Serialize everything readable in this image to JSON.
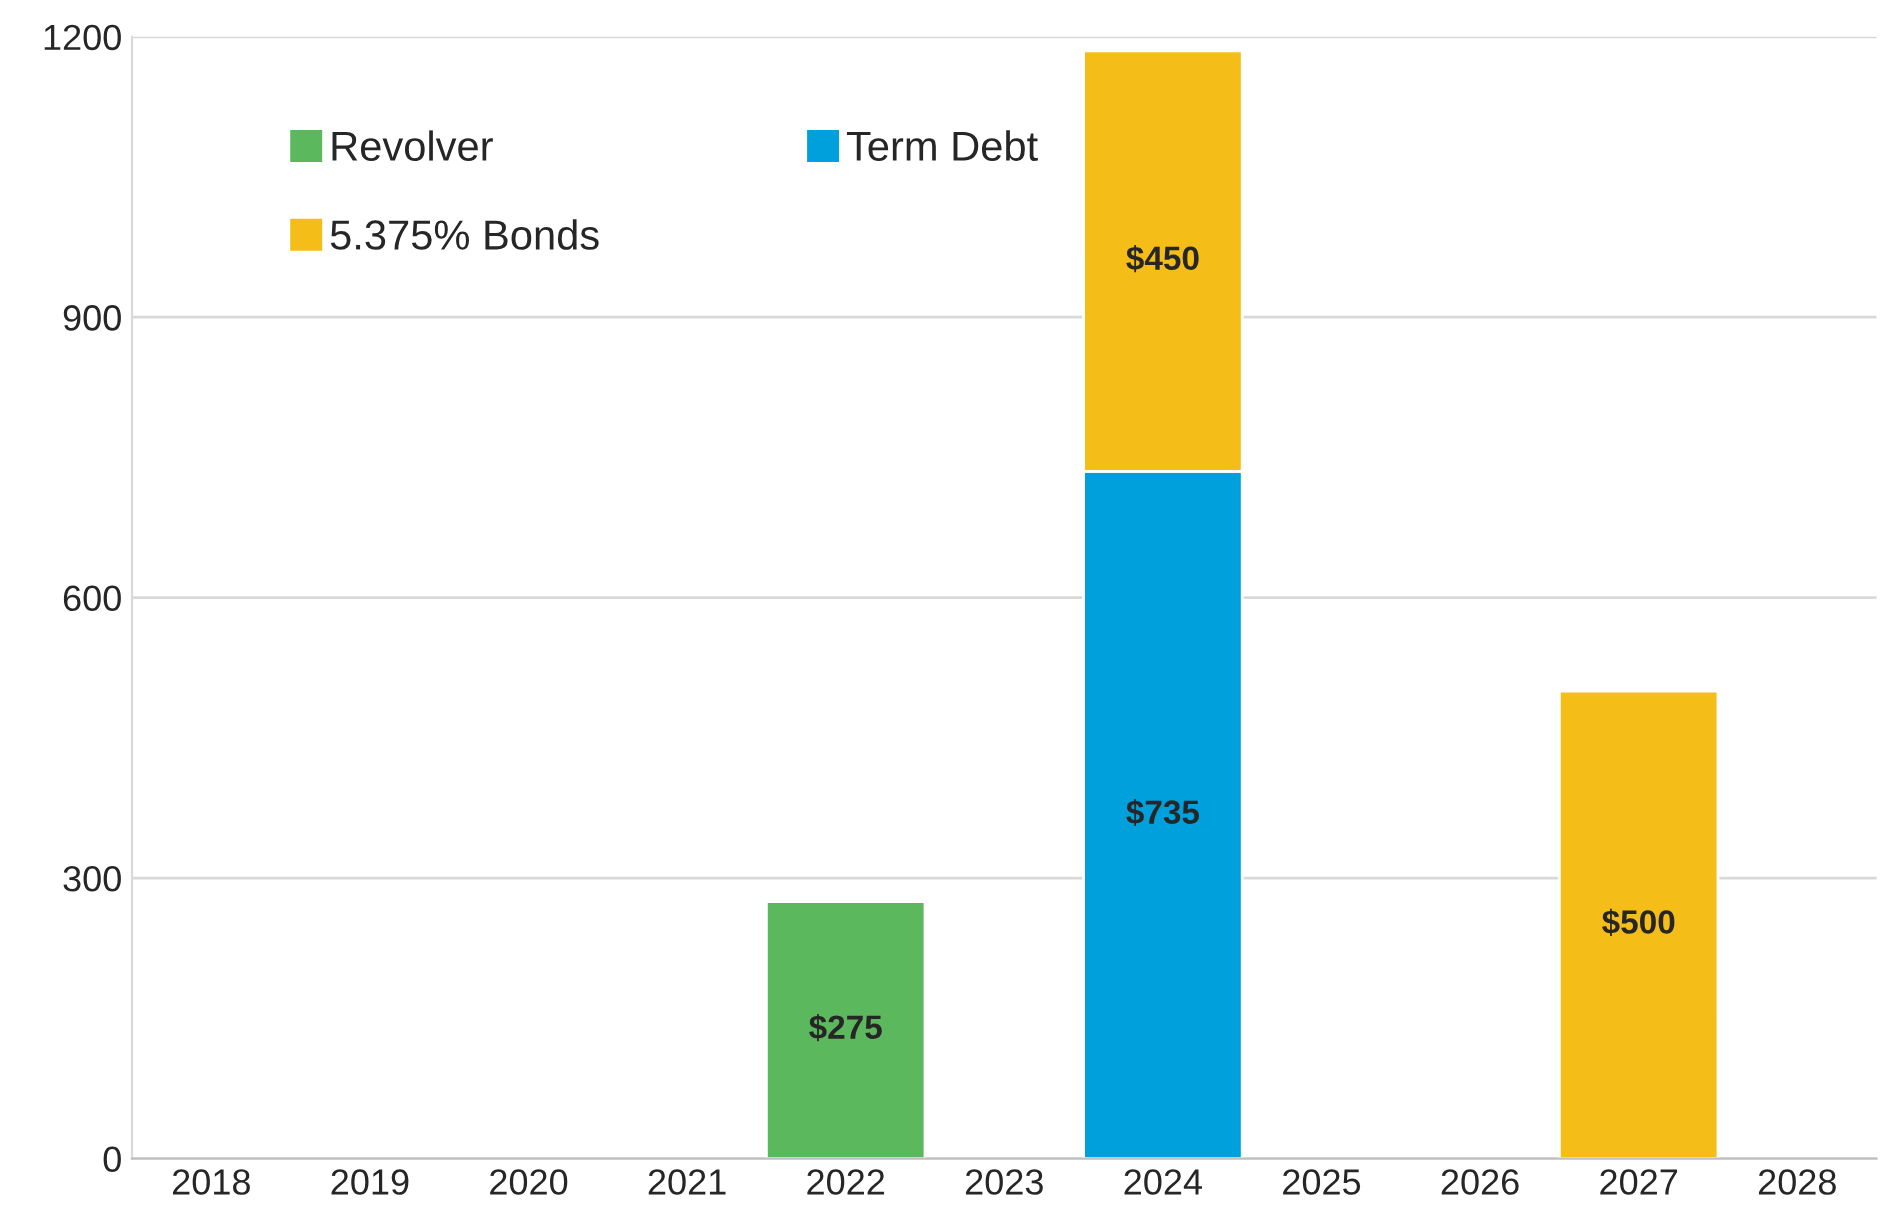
{
  "chart_data": {
    "type": "bar",
    "stacked": true,
    "categories": [
      "2018",
      "2019",
      "2020",
      "2021",
      "2022",
      "2023",
      "2024",
      "2025",
      "2026",
      "2027",
      "2028"
    ],
    "series": [
      {
        "name": "Revolver",
        "color": "#5cb85c",
        "values": [
          null,
          null,
          null,
          null,
          275,
          null,
          null,
          null,
          null,
          null,
          null
        ],
        "value_labels": [
          null,
          null,
          null,
          null,
          "$275",
          null,
          null,
          null,
          null,
          null,
          null
        ]
      },
      {
        "name": "Term Debt",
        "color": "#00a0dc",
        "values": [
          null,
          null,
          null,
          null,
          null,
          null,
          735,
          null,
          null,
          null,
          null
        ],
        "value_labels": [
          null,
          null,
          null,
          null,
          null,
          null,
          "$735",
          null,
          null,
          null,
          null
        ]
      },
      {
        "name": "5.375% Bonds",
        "color": "#f5bd18",
        "values": [
          null,
          null,
          null,
          null,
          null,
          null,
          450,
          null,
          null,
          500,
          null
        ],
        "value_labels": [
          null,
          null,
          null,
          null,
          null,
          null,
          "$450",
          null,
          null,
          "$500",
          null
        ]
      }
    ],
    "ylim": [
      0,
      1200
    ],
    "yticks": [
      0,
      300,
      600,
      900,
      1200
    ],
    "grid": "y",
    "legend": "top left"
  }
}
